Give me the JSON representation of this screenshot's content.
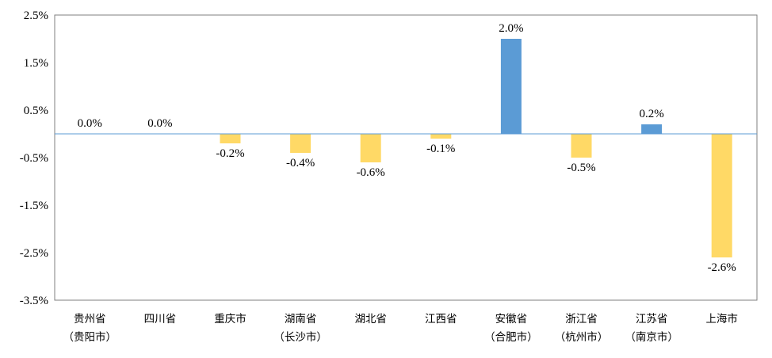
{
  "chart_data": {
    "type": "bar",
    "categories": [
      [
        "贵州省",
        "（贵阳市）"
      ],
      [
        "四川省"
      ],
      [
        "重庆市"
      ],
      [
        "湖南省",
        "（长沙市）"
      ],
      [
        "湖北省"
      ],
      [
        "江西省"
      ],
      [
        "安徽省",
        "（合肥市）"
      ],
      [
        "浙江省",
        "（杭州市）"
      ],
      [
        "江苏省",
        "（南京市）"
      ],
      [
        "上海市"
      ]
    ],
    "values": [
      0.0,
      0.0,
      -0.2,
      -0.4,
      -0.6,
      -0.1,
      2.0,
      -0.5,
      0.2,
      -2.6
    ],
    "value_labels": [
      "0.0%",
      "0.0%",
      "-0.2%",
      "-0.4%",
      "-0.6%",
      "-0.1%",
      "2.0%",
      "-0.5%",
      "0.2%",
      "-2.6%"
    ],
    "ylim": [
      -3.5,
      2.5
    ],
    "yticks": [
      2.5,
      1.5,
      0.5,
      -0.5,
      -1.5,
      -2.5,
      -3.5
    ],
    "ytick_labels": [
      "2.5%",
      "1.5%",
      "0.5%",
      "-0.5%",
      "-1.5%",
      "-2.5%",
      "-3.5%"
    ],
    "colors": {
      "positive": "#5B9BD5",
      "negative": "#FFD966",
      "axis": "#5B9BD5",
      "frame": "#7F7F7F"
    },
    "grid": false,
    "legend": "none"
  }
}
